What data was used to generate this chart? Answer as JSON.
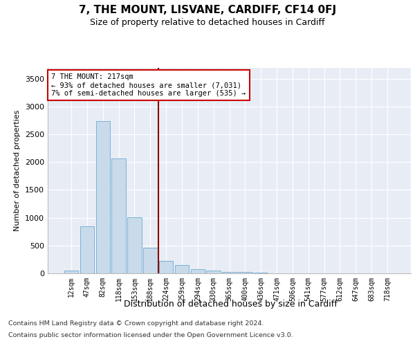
{
  "title": "7, THE MOUNT, LISVANE, CARDIFF, CF14 0FJ",
  "subtitle": "Size of property relative to detached houses in Cardiff",
  "xlabel": "Distribution of detached houses by size in Cardiff",
  "ylabel": "Number of detached properties",
  "bar_labels": [
    "12sqm",
    "47sqm",
    "82sqm",
    "118sqm",
    "153sqm",
    "188sqm",
    "224sqm",
    "259sqm",
    "294sqm",
    "330sqm",
    "365sqm",
    "400sqm",
    "436sqm",
    "471sqm",
    "506sqm",
    "541sqm",
    "577sqm",
    "612sqm",
    "647sqm",
    "683sqm",
    "718sqm"
  ],
  "bar_values": [
    55,
    850,
    2730,
    2070,
    1010,
    460,
    225,
    145,
    70,
    55,
    30,
    20,
    8,
    3,
    0,
    0,
    0,
    0,
    0,
    0,
    0
  ],
  "bar_color": "#c9daea",
  "bar_edgecolor": "#6aaad4",
  "vline_pos": 5.5,
  "vline_color": "#8b0000",
  "annotation_text": "7 THE MOUNT: 217sqm\n← 93% of detached houses are smaller (7,031)\n7% of semi-detached houses are larger (535) →",
  "annotation_box_facecolor": "#ffffff",
  "annotation_box_edgecolor": "#cc0000",
  "ylim": [
    0,
    3700
  ],
  "yticks": [
    0,
    500,
    1000,
    1500,
    2000,
    2500,
    3000,
    3500
  ],
  "plot_bgcolor": "#e8edf5",
  "footer_line1": "Contains HM Land Registry data © Crown copyright and database right 2024.",
  "footer_line2": "Contains public sector information licensed under the Open Government Licence v3.0."
}
